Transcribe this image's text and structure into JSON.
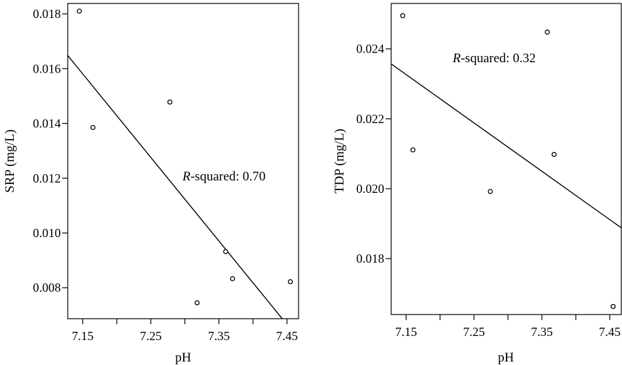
{
  "chart_data": [
    {
      "type": "scatter",
      "xlabel": "pH",
      "ylabel": "SRP (mg/L)",
      "xlim": [
        7.128,
        7.467
      ],
      "ylim": [
        0.00687,
        0.01838
      ],
      "xticks": [
        7.15,
        7.25,
        7.35,
        7.45
      ],
      "xtick_labels": [
        "7.15",
        "7.25",
        "7.35",
        "7.45"
      ],
      "xminor_ticks": [
        7.2,
        7.3,
        7.4
      ],
      "yticks": [
        0.008,
        0.01,
        0.012,
        0.014,
        0.016,
        0.018
      ],
      "ytick_labels": [
        "0.008",
        "0.010",
        "0.012",
        "0.014",
        "0.016",
        "0.018"
      ],
      "points": [
        {
          "x": 7.145,
          "y": 0.0181
        },
        {
          "x": 7.165,
          "y": 0.01385
        },
        {
          "x": 7.278,
          "y": 0.01478
        },
        {
          "x": 7.318,
          "y": 0.00745
        },
        {
          "x": 7.36,
          "y": 0.00932
        },
        {
          "x": 7.37,
          "y": 0.00833
        },
        {
          "x": 7.455,
          "y": 0.00822
        }
      ],
      "fit_line": {
        "x": [
          7.128,
          7.443
        ],
        "y": [
          0.01648,
          0.00687
        ]
      },
      "annotation": {
        "italic": "R",
        "text": "-squared: 0.70"
      },
      "grid": false
    },
    {
      "type": "scatter",
      "xlabel": "pH",
      "ylabel": "TDP (mg/L)",
      "xlim": [
        7.128,
        7.467
      ],
      "ylim": [
        0.0164,
        0.0253
      ],
      "xticks": [
        7.15,
        7.25,
        7.35,
        7.45
      ],
      "xtick_labels": [
        "7.15",
        "7.25",
        "7.35",
        "7.45"
      ],
      "xminor_ticks": [
        7.2,
        7.3,
        7.4
      ],
      "yticks": [
        0.018,
        0.02,
        0.022,
        0.024
      ],
      "ytick_labels": [
        "0.018",
        "0.020",
        "0.022",
        "0.024"
      ],
      "points": [
        {
          "x": 7.145,
          "y": 0.02495
        },
        {
          "x": 7.16,
          "y": 0.02111
        },
        {
          "x": 7.274,
          "y": 0.01992
        },
        {
          "x": 7.358,
          "y": 0.02448
        },
        {
          "x": 7.368,
          "y": 0.02098
        },
        {
          "x": 7.455,
          "y": 0.01663
        }
      ],
      "fit_line": {
        "x": [
          7.128,
          7.467
        ],
        "y": [
          0.02357,
          0.01888
        ]
      },
      "annotation": {
        "italic": "R",
        "text": "-squared: 0.32"
      },
      "grid": false
    }
  ]
}
